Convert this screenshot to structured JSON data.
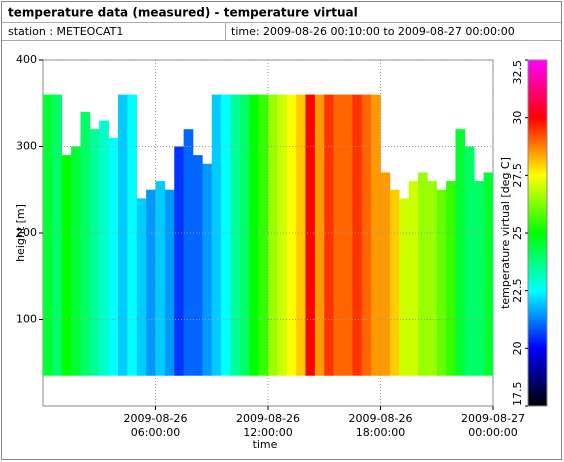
{
  "chart_data": {
    "type": "heatmap",
    "title": "temperature data (measured) - temperature virtual",
    "station": "station : METEOCAT1",
    "time_range": "time: 2009-08-26 00:10:00 to 2009-08-27 00:00:00",
    "x_label": "time",
    "y_label": "height [m]",
    "colorbar_label": "temperature virtual [deg C]",
    "xlim": [
      "2009-08-26 00:00:00",
      "2009-08-27 00:00:00"
    ],
    "xticks": [
      {
        "value": "2009-08-26 06:00:00",
        "label": [
          "2009-08-26",
          "06:00:00"
        ]
      },
      {
        "value": "2009-08-26 12:00:00",
        "label": [
          "2009-08-26",
          "12:00:00"
        ]
      },
      {
        "value": "2009-08-26 18:00:00",
        "label": [
          "2009-08-26",
          "18:00:00"
        ]
      },
      {
        "value": "2009-08-27 00:00:00",
        "label": [
          "2009-08-27",
          "00:00:00"
        ]
      }
    ],
    "ylim": [
      0,
      400
    ],
    "yticks": [
      100,
      200,
      300,
      400
    ],
    "clim": [
      17.5,
      32.5
    ],
    "cticks": [
      17.5,
      20,
      22.5,
      25,
      27.5,
      30,
      32.5
    ],
    "colorscale": [
      "#000000",
      "#0000ff",
      "#00ffff",
      "#00ff00",
      "#ffff00",
      "#ff0000",
      "#ff00ff"
    ],
    "grid": true,
    "x": [
      "2009-08-26 00:00:00",
      "2009-08-26 00:30:00",
      "2009-08-26 01:00:00",
      "2009-08-26 01:30:00",
      "2009-08-26 02:00:00",
      "2009-08-26 02:30:00",
      "2009-08-26 03:00:00",
      "2009-08-26 03:30:00",
      "2009-08-26 04:00:00",
      "2009-08-26 04:30:00",
      "2009-08-26 05:00:00",
      "2009-08-26 05:30:00",
      "2009-08-26 06:00:00",
      "2009-08-26 06:30:00",
      "2009-08-26 07:00:00",
      "2009-08-26 07:30:00",
      "2009-08-26 08:00:00",
      "2009-08-26 08:30:00",
      "2009-08-26 09:00:00",
      "2009-08-26 09:30:00",
      "2009-08-26 10:00:00",
      "2009-08-26 10:30:00",
      "2009-08-26 11:00:00",
      "2009-08-26 11:30:00",
      "2009-08-26 12:00:00",
      "2009-08-26 12:30:00",
      "2009-08-26 13:00:00",
      "2009-08-26 13:30:00",
      "2009-08-26 14:00:00",
      "2009-08-26 14:30:00",
      "2009-08-26 15:00:00",
      "2009-08-26 15:30:00",
      "2009-08-26 16:00:00",
      "2009-08-26 16:30:00",
      "2009-08-26 17:00:00",
      "2009-08-26 17:30:00",
      "2009-08-26 18:00:00",
      "2009-08-26 18:30:00",
      "2009-08-26 19:00:00",
      "2009-08-26 19:30:00",
      "2009-08-26 20:00:00",
      "2009-08-26 20:30:00",
      "2009-08-26 21:00:00",
      "2009-08-26 21:30:00",
      "2009-08-26 22:00:00",
      "2009-08-26 22:30:00",
      "2009-08-26 23:00:00",
      "2009-08-26 23:30:00"
    ],
    "values": [
      24.5,
      24,
      25,
      24.5,
      24,
      23.5,
      23,
      22.5,
      22,
      22.5,
      22,
      21.5,
      22,
      21.5,
      20.5,
      21,
      21,
      21.5,
      22,
      22.5,
      23.5,
      24,
      25,
      25.5,
      26.5,
      27,
      27.5,
      28,
      30,
      28.5,
      29.5,
      29,
      29,
      29.5,
      29,
      28.5,
      28.5,
      28,
      27,
      27,
      26.5,
      26.5,
      26,
      25.5,
      24.5,
      24,
      24,
      24.5
    ],
    "y_bottom": 35,
    "y_top": [
      360,
      360,
      290,
      300,
      340,
      320,
      330,
      310,
      360,
      360,
      240,
      250,
      260,
      250,
      300,
      320,
      290,
      280,
      360,
      360,
      360,
      360,
      360,
      360,
      360,
      360,
      360,
      360,
      360,
      360,
      360,
      360,
      360,
      360,
      360,
      360,
      270,
      250,
      240,
      260,
      270,
      260,
      250,
      260,
      320,
      300,
      260,
      270
    ]
  }
}
